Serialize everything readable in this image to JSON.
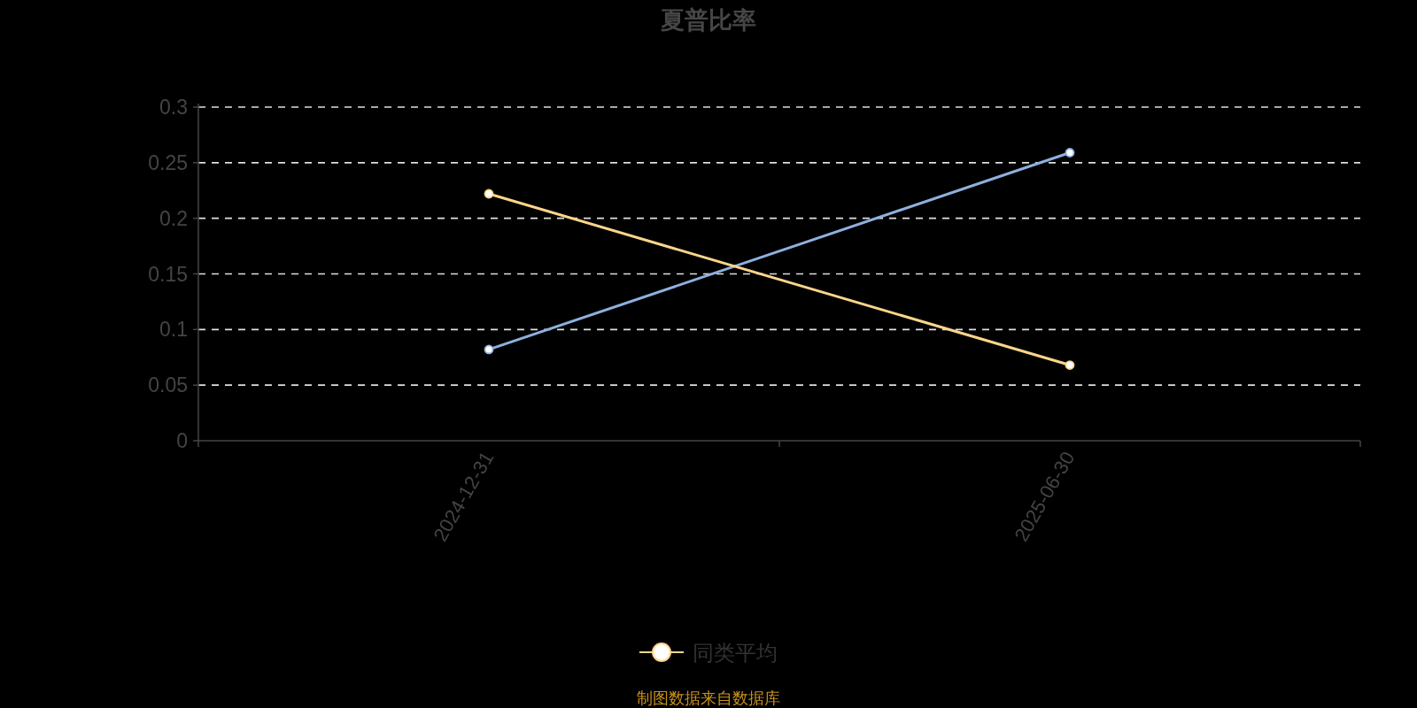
{
  "chart_data": {
    "type": "line",
    "title": "夏普比率",
    "categories": [
      "2024-12-31",
      "2025-06-30"
    ],
    "series": [
      {
        "color": "#8eb0de",
        "values": [
          0.082,
          0.259
        ]
      },
      {
        "name": "同类平均",
        "color": "#fdd58a",
        "values": [
          0.222,
          0.068
        ]
      }
    ],
    "ylim": [
      0,
      0.3
    ],
    "yticks": [
      0,
      0.05,
      0.1,
      0.15,
      0.2,
      0.25,
      0.3
    ],
    "grid": "y",
    "legend": "bottom",
    "marker": "circle",
    "line_style": "solid",
    "annotations": [
      "制图数据来自数据库"
    ]
  }
}
